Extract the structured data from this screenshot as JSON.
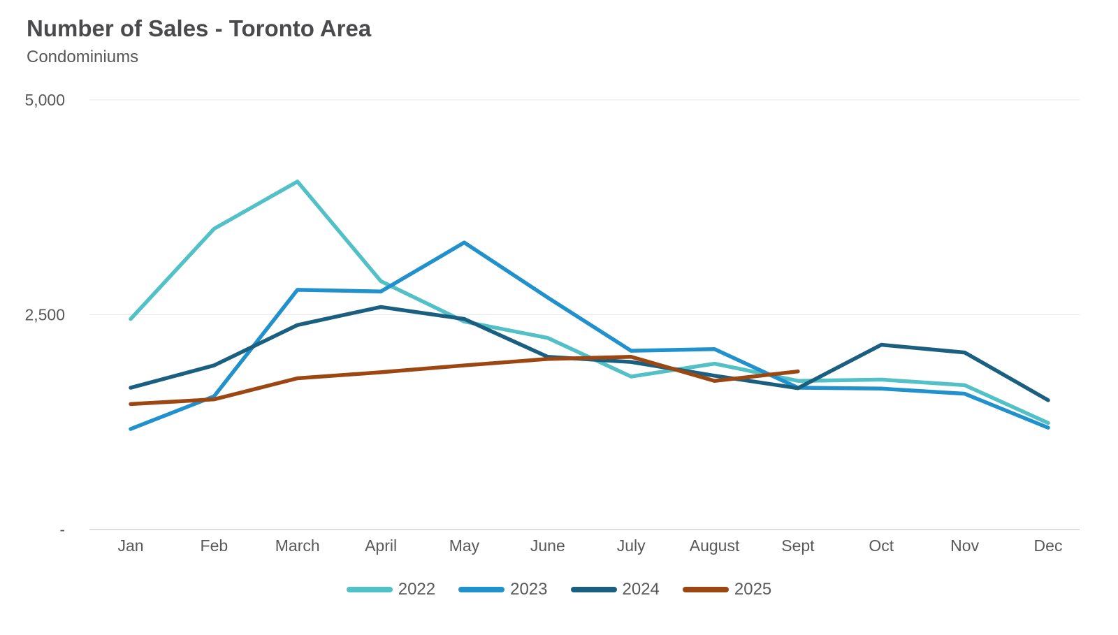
{
  "header": {
    "title": "Number of Sales - Toronto Area",
    "subtitle": "Condominiums"
  },
  "chart_data": {
    "type": "line",
    "title": "Number of Sales - Toronto Area",
    "subtitle": "Condominiums",
    "categories": [
      "Jan",
      "Feb",
      "March",
      "April",
      "May",
      "June",
      "July",
      "August",
      "Sept",
      "Oct",
      "Nov",
      "Dec"
    ],
    "series": [
      {
        "name": "2022",
        "color": "#52c1c7",
        "values": [
          2450,
          3500,
          4050,
          2890,
          2420,
          2230,
          1780,
          1930,
          1730,
          1745,
          1680,
          1240
        ]
      },
      {
        "name": "2023",
        "color": "#2191ce",
        "values": [
          1170,
          1550,
          2790,
          2770,
          3340,
          2700,
          2080,
          2100,
          1650,
          1640,
          1580,
          1185
        ]
      },
      {
        "name": "2024",
        "color": "#1b5f80",
        "values": [
          1650,
          1910,
          2380,
          2590,
          2450,
          2010,
          1950,
          1790,
          1645,
          2150,
          2060,
          1505
        ]
      },
      {
        "name": "2025",
        "color": "#9c4712",
        "values": [
          1460,
          1515,
          1760,
          1830,
          1910,
          1985,
          2010,
          1730,
          1840
        ]
      }
    ],
    "y_ticks": [
      {
        "label": "5,000",
        "value": 5000
      },
      {
        "label": "2,500",
        "value": 2500
      },
      {
        "label": "-",
        "value": 0
      }
    ],
    "ylim": [
      0,
      5000
    ],
    "xlabel": "",
    "ylabel": "",
    "grid": true,
    "legend_position": "bottom"
  }
}
